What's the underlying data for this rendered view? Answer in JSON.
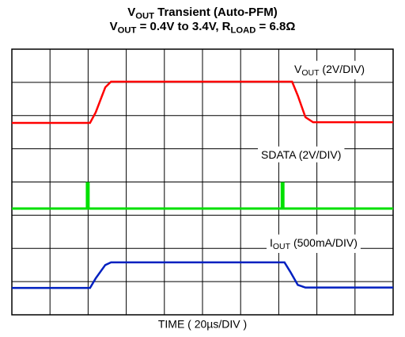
{
  "chart_data": {
    "type": "line",
    "title": [
      [
        {
          "text": "V"
        },
        {
          "text": "OUT",
          "sub": true
        },
        {
          "text": " Transient (Auto-PFM)"
        }
      ],
      [
        {
          "text": "V"
        },
        {
          "text": "OUT",
          "sub": true
        },
        {
          "text": " = 0.4V to 3.4V, R"
        },
        {
          "text": "LOAD",
          "sub": true
        },
        {
          "text": " = 6.8Ω"
        }
      ]
    ],
    "x_label": "TIME ( 20µs/DIV )",
    "xlim": [
      0,
      10
    ],
    "ylim": [
      0,
      8
    ],
    "xticks": [
      0,
      1,
      2,
      3,
      4,
      5,
      6,
      7,
      8,
      9,
      10
    ],
    "yticks": [
      0,
      1,
      2,
      3,
      4,
      5,
      6,
      7,
      8
    ],
    "grid": true,
    "series": [
      {
        "name": [
          {
            "text": "V"
          },
          {
            "text": "OUT",
            "sub": true
          },
          {
            "text": " (2V/DIV)"
          }
        ],
        "color": "#ff0000",
        "x": [
          0,
          2.05,
          2.2,
          2.45,
          2.6,
          7.35,
          7.5,
          7.7,
          7.9,
          10
        ],
        "values": [
          5.78,
          5.78,
          6.1,
          6.85,
          7.02,
          7.02,
          6.6,
          5.95,
          5.8,
          5.8
        ]
      },
      {
        "name": [
          {
            "text": "SDATA (2V/DIV)"
          }
        ],
        "color": "#00e000",
        "x": [
          0,
          1.97,
          1.97,
          2.01,
          2.01,
          7.08,
          7.08,
          7.12,
          7.12,
          10
        ],
        "values": [
          3.2,
          3.2,
          3.96,
          3.96,
          3.2,
          3.2,
          3.96,
          3.96,
          3.2,
          3.2
        ]
      },
      {
        "name": [
          {
            "text": "I"
          },
          {
            "text": "OUT",
            "sub": true
          },
          {
            "text": " (500mA/DIV)"
          }
        ],
        "color": "#0020c0",
        "x": [
          0,
          2.05,
          2.2,
          2.45,
          2.6,
          7.15,
          7.3,
          7.5,
          7.7,
          10
        ],
        "values": [
          0.81,
          0.81,
          1.1,
          1.5,
          1.58,
          1.58,
          1.3,
          0.9,
          0.82,
          0.82
        ]
      }
    ]
  }
}
